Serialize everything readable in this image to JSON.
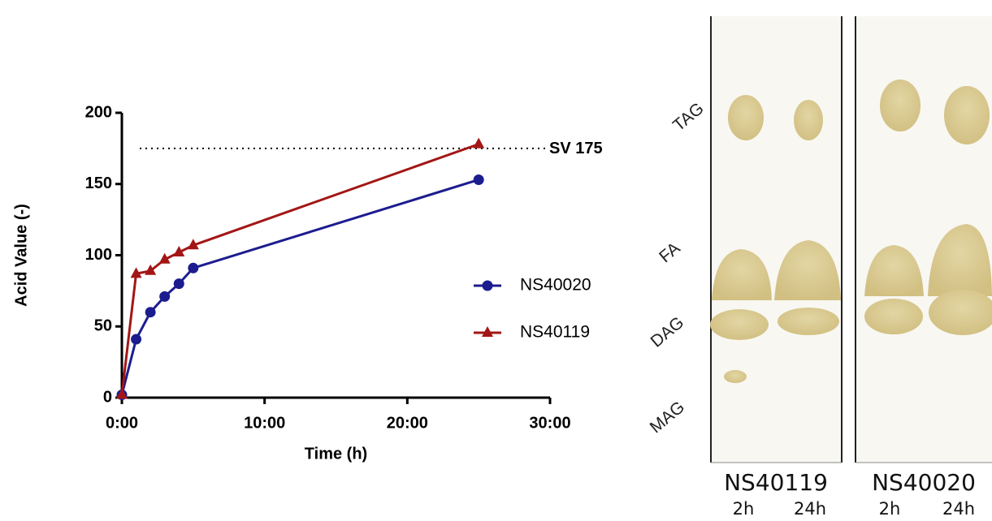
{
  "chart_data": {
    "type": "line",
    "x_label": "Time (h)",
    "y_label": "Acid Value (-)",
    "xlim": [
      0,
      30
    ],
    "xticks": [
      {
        "value": 0,
        "label": "0:00"
      },
      {
        "value": 10,
        "label": "10:00"
      },
      {
        "value": 20,
        "label": "20:00"
      },
      {
        "value": 30,
        "label": "30:00"
      }
    ],
    "ylim": [
      0,
      200
    ],
    "yticks": [
      0,
      50,
      100,
      150,
      200
    ],
    "reference_line": {
      "value": 175,
      "label": "SV 175"
    },
    "series": [
      {
        "name": "NS40020",
        "color": "#1c1c8f",
        "marker": "circle",
        "x": [
          0,
          1,
          2,
          3,
          4,
          5,
          25
        ],
        "values": [
          2,
          41,
          60,
          71,
          80,
          91,
          153
        ]
      },
      {
        "name": "NS40119",
        "color": "#a31616",
        "marker": "triangle",
        "x": [
          0,
          1,
          2,
          3,
          4,
          5,
          25
        ],
        "values": [
          2,
          87,
          89,
          97,
          102,
          107,
          178
        ]
      }
    ]
  },
  "tlc": {
    "band_labels": [
      "TAG",
      "FA",
      "DAG",
      "MAG"
    ],
    "plates": [
      {
        "name": "NS40119",
        "lanes": [
          "2h",
          "24h"
        ]
      },
      {
        "name": "NS40020",
        "lanes": [
          "2h",
          "24h"
        ]
      }
    ]
  }
}
